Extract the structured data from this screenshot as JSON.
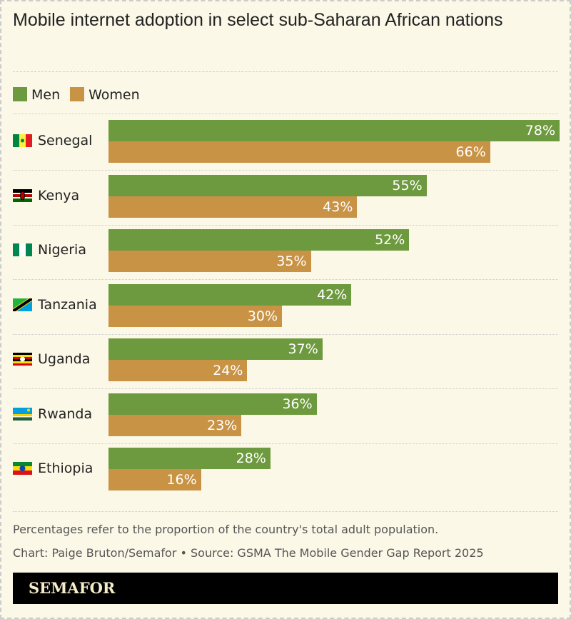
{
  "title": "Mobile internet adoption in select sub-Saharan African nations",
  "chart_data": {
    "type": "bar",
    "orientation": "horizontal",
    "title": "Mobile internet adoption in select sub-Saharan African nations",
    "categories": [
      "Senegal",
      "Kenya",
      "Nigeria",
      "Tanzania",
      "Uganda",
      "Rwanda",
      "Ethiopia"
    ],
    "series": [
      {
        "name": "Men",
        "color": "#6d9a3e",
        "values": [
          78,
          55,
          52,
          42,
          37,
          36,
          28
        ]
      },
      {
        "name": "Women",
        "color": "#c99346",
        "values": [
          66,
          43,
          35,
          30,
          24,
          23,
          16
        ]
      }
    ],
    "value_suffix": "%",
    "legend": "top-left",
    "grid": false
  },
  "labels": {
    "values_men": [
      "78%",
      "55%",
      "52%",
      "42%",
      "37%",
      "36%",
      "28%"
    ],
    "values_women": [
      "66%",
      "43%",
      "35%",
      "30%",
      "24%",
      "23%",
      "16%"
    ]
  },
  "note": "Percentages refer to the proportion of the country's total adult population.",
  "credit": "Chart: Paige Bruton/Semafor • Source: GSMA The Mobile Gender Gap Report 2025",
  "brand": "SEMAFOR"
}
